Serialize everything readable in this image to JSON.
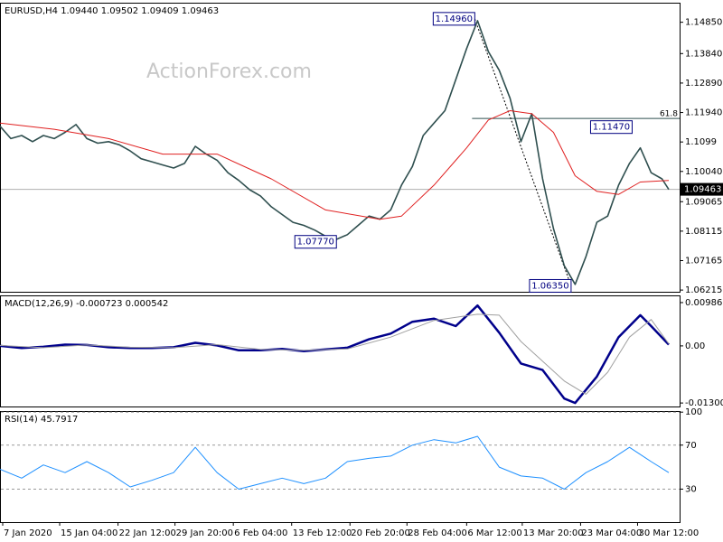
{
  "chart_data": [
    {
      "type": "line",
      "title": "EURUSD,H4 1.09440 1.09502 1.09409 1.09463",
      "watermark": "ActionForex.com",
      "xlim": [
        0,
        501
      ],
      "ylim": [
        1.0616,
        1.1548
      ],
      "yticks": [
        {
          "value": 1.1485,
          "label": "1.14850"
        },
        {
          "value": 1.1384,
          "label": "1.13840"
        },
        {
          "value": 1.1289,
          "label": "1.12890"
        },
        {
          "value": 1.1194,
          "label": "1.11940"
        },
        1.1099,
        {
          "value": 1.1004,
          "label": "1.10040"
        },
        1.09065,
        1.08115,
        1.07165,
        1.06215
      ],
      "series": [
        {
          "color": "#2f4f4f",
          "x": [
            0,
            8,
            16,
            24,
            32,
            40,
            48,
            56,
            64,
            72,
            80,
            88,
            96,
            104,
            112,
            120,
            128,
            136,
            144,
            152,
            160,
            168,
            176,
            184,
            192,
            200,
            208,
            216,
            224,
            232,
            240,
            248,
            256,
            264,
            272,
            280,
            288,
            296,
            304,
            312,
            320,
            328,
            336,
            344,
            352,
            360,
            368,
            376,
            384,
            392,
            400,
            408,
            416,
            424,
            432,
            440,
            448,
            456,
            464,
            472,
            480,
            488,
            493
          ],
          "values": [
            1.115,
            1.111,
            1.112,
            1.11,
            1.112,
            1.111,
            1.113,
            1.1155,
            1.111,
            1.1095,
            1.11,
            1.109,
            1.107,
            1.1045,
            1.1035,
            1.1025,
            1.1015,
            1.103,
            1.1085,
            1.106,
            1.104,
            1.1,
            1.0975,
            1.0945,
            1.0925,
            1.089,
            1.0865,
            1.084,
            1.083,
            1.0815,
            1.0795,
            1.0785,
            1.08,
            1.083,
            1.086,
            1.085,
            1.088,
            1.096,
            1.102,
            1.112,
            1.116,
            1.12,
            1.13,
            1.14,
            1.149,
            1.139,
            1.133,
            1.124,
            1.11,
            1.119,
            1.098,
            1.082,
            1.07,
            1.064,
            1.073,
            1.084,
            1.086,
            1.096,
            1.103,
            1.108,
            1.1,
            1.098,
            1.0946
          ]
        },
        {
          "color": "#e02020",
          "x": [
            0,
            40,
            80,
            120,
            160,
            200,
            240,
            280,
            296,
            320,
            344,
            360,
            376,
            392,
            408,
            424,
            440,
            456,
            472,
            493
          ],
          "values": [
            1.116,
            1.114,
            1.111,
            1.106,
            1.106,
            1.098,
            1.088,
            1.085,
            1.086,
            1.096,
            1.108,
            1.117,
            1.12,
            1.119,
            1.113,
            1.099,
            1.094,
            1.093,
            1.097,
            1.0975
          ]
        }
      ],
      "annotations": [
        {
          "x": 350,
          "value": 1.1496,
          "label": "1.14960"
        },
        {
          "x": 248,
          "value": 1.0777,
          "label": "1.07770"
        },
        {
          "x": 421,
          "value": 1.0635,
          "label": "1.06350"
        },
        {
          "x": 466,
          "value": 1.1147,
          "label": "1.11470"
        }
      ],
      "trendline": {
        "x": [
          350,
          421
        ],
        "values": [
          1.1496,
          1.0635
        ]
      },
      "fib_level": {
        "text": "61.8",
        "price": 1.1175,
        "x_start": 348
      },
      "last_price": 1.09463
    },
    {
      "type": "line",
      "title": "MACD(12,26,9) -0.000723 0.000542",
      "xlim": [
        0,
        501
      ],
      "ylim": [
        -0.0138,
        0.0115
      ],
      "yticks": [
        0.009862,
        {
          "value": 0,
          "label": "0.00"
        },
        -0.013002
      ],
      "series": [
        {
          "color": "#00008b",
          "x": [
            0,
            16,
            32,
            48,
            64,
            80,
            96,
            112,
            128,
            144,
            160,
            176,
            192,
            208,
            224,
            240,
            256,
            272,
            288,
            304,
            320,
            336,
            352,
            368,
            384,
            400,
            416,
            424,
            440,
            456,
            472,
            480,
            493
          ],
          "values": [
            0,
            -0.0005,
            -0.0002,
            0.0003,
            0.0002,
            -0.0003,
            -0.0005,
            -0.0005,
            -0.0003,
            0.0007,
            0.0001,
            -0.001,
            -0.001,
            -0.0007,
            -0.0012,
            -0.0008,
            -0.0004,
            0.0015,
            0.0028,
            0.0055,
            0.0062,
            0.0045,
            0.0092,
            0.003,
            -0.004,
            -0.0055,
            -0.012,
            -0.013,
            -0.007,
            0.002,
            0.007,
            0.0045,
            0.0003
          ]
        },
        {
          "color": "#a0a0a0",
          "x": [
            0,
            32,
            64,
            96,
            128,
            160,
            192,
            224,
            256,
            288,
            320,
            352,
            368,
            384,
            400,
            416,
            432,
            448,
            464,
            480,
            493
          ],
          "values": [
            0.0001,
            -0.0004,
            0.0002,
            -0.0003,
            -0.0004,
            0.0003,
            -0.0008,
            -0.001,
            -0.0007,
            0.002,
            0.0058,
            0.0072,
            0.007,
            0.001,
            -0.0035,
            -0.008,
            -0.011,
            -0.006,
            0.002,
            0.006,
            0.0005
          ]
        }
      ]
    },
    {
      "type": "line",
      "title": "RSI(14) 45.7917",
      "xlim": [
        0,
        501
      ],
      "ylim": [
        0,
        101
      ],
      "yticks": [
        100,
        70,
        30
      ],
      "grid": true,
      "series": [
        {
          "color": "#1e90ff",
          "x": [
            0,
            16,
            32,
            48,
            64,
            80,
            96,
            112,
            128,
            144,
            160,
            176,
            192,
            208,
            224,
            240,
            256,
            272,
            288,
            304,
            320,
            336,
            352,
            368,
            384,
            400,
            416,
            432,
            448,
            464,
            480,
            493
          ],
          "values": [
            48,
            40,
            52,
            45,
            55,
            45,
            32,
            38,
            45,
            68,
            45,
            30,
            35,
            40,
            35,
            40,
            55,
            58,
            60,
            70,
            75,
            72,
            78,
            50,
            42,
            40,
            30,
            45,
            55,
            68,
            55,
            45
          ]
        }
      ],
      "xticks": [
        {
          "value": 2,
          "label": "7 Jan 2020"
        },
        {
          "value": 44,
          "label": "15 Jan 04:00"
        },
        {
          "value": 87,
          "label": "22 Jan 12:00"
        },
        {
          "value": 129,
          "label": "29 Jan 20:00"
        },
        {
          "value": 172,
          "label": "6 Feb 04:00"
        },
        {
          "value": 215,
          "label": "13 Feb 12:00"
        },
        {
          "value": 258,
          "label": "20 Feb 20:00"
        },
        {
          "value": 300,
          "label": "28 Feb 04:00"
        },
        {
          "value": 344,
          "label": "6 Mar 12:00"
        },
        {
          "value": 385,
          "label": "13 Mar 20:00"
        },
        {
          "value": 428,
          "label": "23 Mar 04:00"
        },
        {
          "value": 470,
          "label": "30 Mar 12:00"
        }
      ]
    }
  ]
}
